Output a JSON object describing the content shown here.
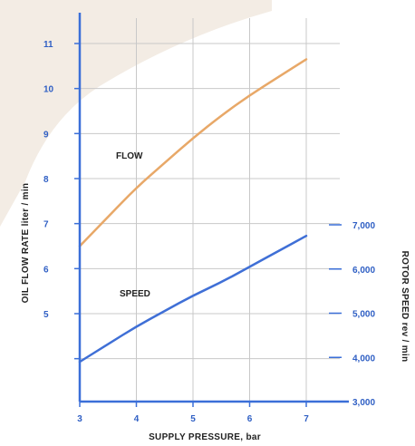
{
  "colors": {
    "axis": "#3b6fd8",
    "grid": "#c8c8c8",
    "flow": "#e8a868",
    "speed": "#3f6fd6",
    "text": "#222222",
    "tick_text": "#2f5fc4",
    "bg_shape": "#f3ece4"
  },
  "chart_data": {
    "type": "line",
    "xlabel": "SUPPLY PRESSURE, bar",
    "ylabel_left": "OIL FLOW RATE liter / min",
    "ylabel_right": "ROTOR SPEED rev / min",
    "x_ticks": [
      "3",
      "4",
      "5",
      "6",
      "7"
    ],
    "xlim": [
      3,
      7
    ],
    "y_left_ticks": [
      "5",
      "6",
      "7",
      "8",
      "9",
      "10",
      "11"
    ],
    "y_left_tick_values": [
      5,
      6,
      7,
      8,
      9,
      10,
      11
    ],
    "y_right_ticks": [
      "3,000",
      "4,000",
      "5,000",
      "6,000",
      "7,000"
    ],
    "y_right_tick_values": [
      3000,
      4000,
      5000,
      6000,
      7000
    ],
    "series": [
      {
        "name": "FLOW",
        "axis": "left",
        "x": [
          3,
          3.5,
          4,
          4.5,
          5,
          5.5,
          6,
          6.5,
          7
        ],
        "y": [
          6.5,
          7.15,
          7.8,
          8.35,
          8.9,
          9.4,
          9.85,
          10.25,
          10.65
        ]
      },
      {
        "name": "SPEED",
        "axis": "right",
        "x": [
          3,
          3.5,
          4,
          4.5,
          5,
          5.5,
          6,
          6.5,
          7
        ],
        "y": [
          3900,
          4300,
          4700,
          5050,
          5400,
          5700,
          6050,
          6400,
          6750
        ]
      }
    ]
  }
}
